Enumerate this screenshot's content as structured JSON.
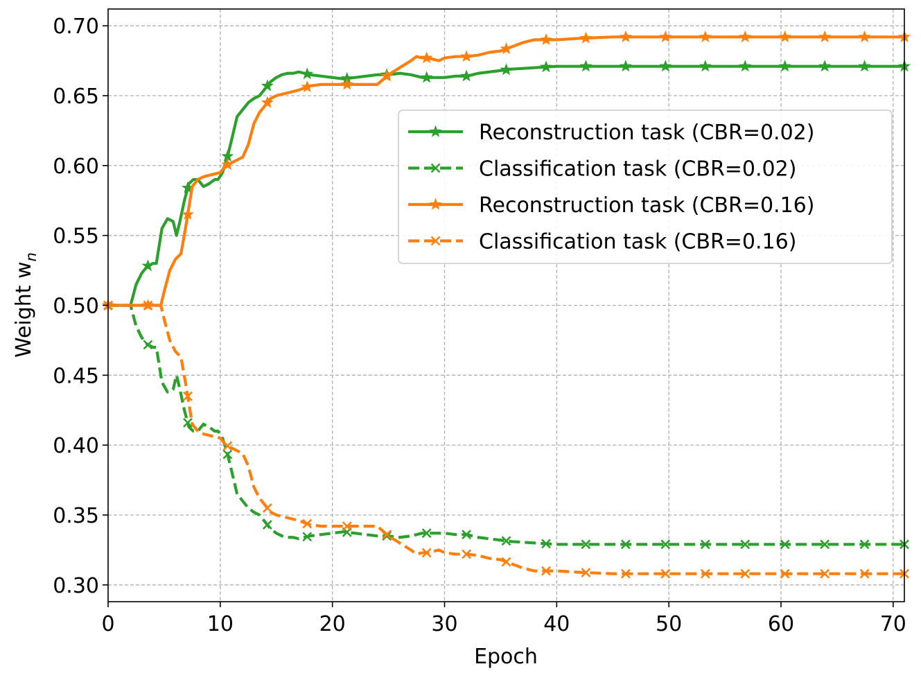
{
  "chart_data": {
    "type": "line",
    "title": "",
    "xlabel": "Epoch",
    "ylabel": "Weight w",
    "ylabel_subscript": "n",
    "xlim": [
      0,
      71
    ],
    "ylim": [
      0.288,
      0.712
    ],
    "xticks": [
      0,
      10,
      20,
      30,
      40,
      50,
      60,
      70
    ],
    "yticks": [
      0.3,
      0.35,
      0.4,
      0.45,
      0.5,
      0.55,
      0.6,
      0.65,
      0.7
    ],
    "ytick_labels": [
      "0.30",
      "0.35",
      "0.40",
      "0.45",
      "0.50",
      "0.55",
      "0.60",
      "0.65",
      "0.70"
    ],
    "grid": true,
    "legend_position": "upper-right",
    "series": [
      {
        "name": "Reconstruction task (CBR=0.02)",
        "color": "#2ca02c",
        "linestyle": "solid",
        "marker": "star",
        "x": [
          0,
          2,
          2.5,
          3,
          3.5,
          4,
          4.3,
          4.8,
          5.3,
          5.8,
          6.1,
          6.4,
          6.8,
          7.2,
          7.6,
          8,
          8.5,
          9,
          9.5,
          9.8,
          10.2,
          10.6,
          11,
          11.5,
          12,
          12.5,
          13,
          13.5,
          14,
          14.5,
          15,
          15.5,
          16,
          16.5,
          17,
          17.5,
          18,
          19,
          20,
          21,
          22,
          23,
          24,
          25,
          26,
          27,
          28,
          29,
          30,
          31,
          32,
          33,
          34,
          35,
          36,
          38,
          40,
          45,
          50,
          55,
          60,
          65,
          71
        ],
        "y": [
          0.5,
          0.5,
          0.515,
          0.523,
          0.528,
          0.53,
          0.53,
          0.555,
          0.562,
          0.56,
          0.55,
          0.56,
          0.575,
          0.587,
          0.59,
          0.59,
          0.585,
          0.587,
          0.59,
          0.59,
          0.595,
          0.605,
          0.618,
          0.635,
          0.64,
          0.645,
          0.648,
          0.65,
          0.655,
          0.66,
          0.663,
          0.665,
          0.666,
          0.666,
          0.667,
          0.666,
          0.665,
          0.664,
          0.663,
          0.662,
          0.663,
          0.664,
          0.665,
          0.665,
          0.666,
          0.665,
          0.663,
          0.663,
          0.663,
          0.664,
          0.664,
          0.666,
          0.667,
          0.668,
          0.669,
          0.67,
          0.671,
          0.671,
          0.671,
          0.671,
          0.671,
          0.671,
          0.671
        ]
      },
      {
        "name": "Classification task (CBR=0.02)",
        "color": "#2ca02c",
        "linestyle": "dashed",
        "marker": "x",
        "x": [
          0,
          2,
          2.5,
          3,
          3.5,
          4,
          4.3,
          4.8,
          5.3,
          5.8,
          6.1,
          6.4,
          6.8,
          7.2,
          7.6,
          8,
          8.5,
          9,
          9.5,
          9.8,
          10.2,
          10.6,
          11,
          11.5,
          12,
          12.5,
          13,
          13.5,
          14,
          14.5,
          15,
          15.5,
          16,
          16.5,
          17,
          17.5,
          18,
          19,
          20,
          21,
          22,
          23,
          24,
          25,
          26,
          27,
          28,
          29,
          30,
          31,
          32,
          33,
          34,
          35,
          36,
          38,
          40,
          45,
          50,
          55,
          60,
          65,
          71
        ],
        "y": [
          0.5,
          0.5,
          0.485,
          0.477,
          0.472,
          0.47,
          0.47,
          0.445,
          0.438,
          0.44,
          0.45,
          0.44,
          0.425,
          0.413,
          0.41,
          0.41,
          0.415,
          0.413,
          0.41,
          0.41,
          0.405,
          0.395,
          0.382,
          0.365,
          0.36,
          0.355,
          0.352,
          0.35,
          0.345,
          0.34,
          0.337,
          0.335,
          0.334,
          0.334,
          0.333,
          0.334,
          0.335,
          0.336,
          0.337,
          0.338,
          0.337,
          0.336,
          0.335,
          0.335,
          0.334,
          0.335,
          0.337,
          0.337,
          0.337,
          0.336,
          0.336,
          0.334,
          0.333,
          0.332,
          0.331,
          0.33,
          0.329,
          0.329,
          0.329,
          0.329,
          0.329,
          0.329,
          0.329
        ]
      },
      {
        "name": "Reconstruction task (CBR=0.16)",
        "color": "#ff7f0e",
        "linestyle": "solid",
        "marker": "star",
        "x": [
          0,
          2,
          3,
          4,
          4.7,
          5,
          5.5,
          6,
          6.5,
          7,
          7.5,
          8,
          8.5,
          9,
          9.5,
          10,
          10.5,
          11,
          11.5,
          12,
          12.5,
          13,
          13.5,
          14,
          14.5,
          15,
          15.5,
          16,
          17,
          18,
          19,
          20,
          21,
          22,
          23,
          24,
          25,
          26,
          27,
          27.5,
          28,
          28.5,
          29,
          29.5,
          30,
          31,
          32,
          33,
          34,
          35,
          36,
          37,
          38,
          40,
          42,
          45,
          50,
          55,
          60,
          65,
          71
        ],
        "y": [
          0.5,
          0.5,
          0.5,
          0.5,
          0.5,
          0.51,
          0.525,
          0.533,
          0.537,
          0.56,
          0.585,
          0.59,
          0.592,
          0.593,
          0.594,
          0.595,
          0.6,
          0.602,
          0.604,
          0.606,
          0.615,
          0.63,
          0.638,
          0.643,
          0.648,
          0.65,
          0.651,
          0.652,
          0.654,
          0.657,
          0.658,
          0.658,
          0.658,
          0.658,
          0.658,
          0.658,
          0.665,
          0.67,
          0.675,
          0.678,
          0.677,
          0.677,
          0.676,
          0.675,
          0.677,
          0.678,
          0.678,
          0.679,
          0.681,
          0.682,
          0.685,
          0.688,
          0.69,
          0.69,
          0.691,
          0.692,
          0.692,
          0.692,
          0.692,
          0.692,
          0.692
        ]
      },
      {
        "name": "Classification task (CBR=0.16)",
        "color": "#ff7f0e",
        "linestyle": "dashed",
        "marker": "x",
        "x": [
          0,
          2,
          3,
          4,
          4.7,
          5,
          5.5,
          6,
          6.5,
          7,
          7.5,
          8,
          8.5,
          9,
          9.5,
          10,
          10.5,
          11,
          11.5,
          12,
          12.5,
          13,
          13.5,
          14,
          14.5,
          15,
          15.5,
          16,
          17,
          18,
          19,
          20,
          21,
          22,
          23,
          24,
          25,
          26,
          27,
          27.5,
          28,
          28.5,
          29,
          29.5,
          30,
          31,
          32,
          33,
          34,
          35,
          36,
          37,
          38,
          40,
          42,
          45,
          50,
          55,
          60,
          65,
          71
        ],
        "y": [
          0.5,
          0.5,
          0.5,
          0.5,
          0.5,
          0.49,
          0.475,
          0.467,
          0.463,
          0.44,
          0.415,
          0.41,
          0.408,
          0.407,
          0.406,
          0.405,
          0.4,
          0.398,
          0.396,
          0.394,
          0.385,
          0.37,
          0.362,
          0.357,
          0.352,
          0.35,
          0.349,
          0.348,
          0.346,
          0.343,
          0.342,
          0.342,
          0.342,
          0.342,
          0.342,
          0.342,
          0.335,
          0.33,
          0.325,
          0.322,
          0.323,
          0.323,
          0.324,
          0.325,
          0.323,
          0.322,
          0.322,
          0.321,
          0.319,
          0.318,
          0.315,
          0.312,
          0.31,
          0.31,
          0.309,
          0.308,
          0.308,
          0.308,
          0.308,
          0.308,
          0.308
        ]
      }
    ]
  }
}
